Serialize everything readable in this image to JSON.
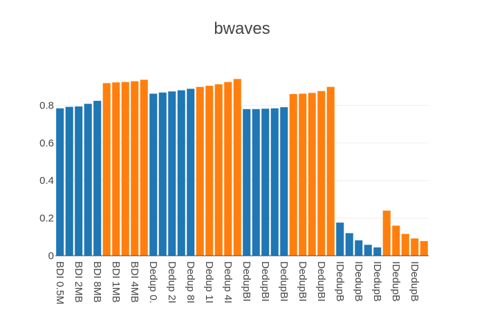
{
  "chart_data": {
    "type": "bar",
    "title": "bwaves",
    "xlabel": "",
    "ylabel": "",
    "ylim": [
      0,
      1.0
    ],
    "yticks": [
      0,
      0.2,
      0.4,
      0.6,
      0.8
    ],
    "ytick_labels": [
      "0",
      "0.2",
      "0.4",
      "0.6",
      "0.8"
    ],
    "grid": true,
    "legend": "none",
    "colors": {
      "blue": "#1f77b4",
      "orange": "#ff7f0e"
    },
    "categories": [
      "BDI 0.5M",
      "BDI 1MB",
      "BDI 2MB",
      "BDI 4MB",
      "BDI 8MB",
      "BDI 0.5M",
      "BDI 1MB",
      "BDI 2MB",
      "BDI 4MB",
      "BDI 8MB",
      "Dedup 0.",
      "Dedup 1I",
      "Dedup 2I",
      "Dedup 4I",
      "Dedup 8I",
      "Dedup 0.",
      "Dedup 1I",
      "Dedup 2I",
      "Dedup 4I",
      "Dedup 8I",
      "DedupBI",
      "DedupBI",
      "DedupBI",
      "DedupBI",
      "DedupBI",
      "DedupBI",
      "DedupBI",
      "DedupBI",
      "DedupBI",
      "DedupBI",
      "IDedupB",
      "IDedupB",
      "IDedupB",
      "IDedupB",
      "IDedupB",
      "IDedupB",
      "IDedupB",
      "IDedupB",
      "IDedupB",
      "IDedupB"
    ],
    "tick_labels": [
      "BDI 0.5M",
      "",
      "BDI 2MB",
      "",
      "BDI 8MB",
      "",
      "BDI 1MB",
      "",
      "BDI 4MB",
      "",
      "Dedup 0.",
      "",
      "Dedup 2I",
      "",
      "Dedup 8I",
      "",
      "Dedup 1I",
      "",
      "Dedup 4I",
      "",
      "DedupBI",
      "",
      "DedupBI",
      "",
      "DedupBI",
      "",
      "DedupBI",
      "",
      "DedupBI",
      "",
      "IDedupB",
      "",
      "IDedupB",
      "",
      "IDedupB",
      "",
      "IDedupB",
      "",
      "IDedupB",
      ""
    ],
    "bar_colors": [
      "blue",
      "blue",
      "blue",
      "blue",
      "blue",
      "orange",
      "orange",
      "orange",
      "orange",
      "orange",
      "blue",
      "blue",
      "blue",
      "blue",
      "blue",
      "orange",
      "orange",
      "orange",
      "orange",
      "orange",
      "blue",
      "blue",
      "blue",
      "blue",
      "blue",
      "orange",
      "orange",
      "orange",
      "orange",
      "orange",
      "blue",
      "blue",
      "blue",
      "blue",
      "blue",
      "orange",
      "orange",
      "orange",
      "orange",
      "orange"
    ],
    "values": [
      0.784,
      0.792,
      0.794,
      0.808,
      0.824,
      0.918,
      0.922,
      0.924,
      0.928,
      0.936,
      0.862,
      0.868,
      0.874,
      0.88,
      0.888,
      0.898,
      0.904,
      0.912,
      0.924,
      0.94,
      0.78,
      0.78,
      0.782,
      0.784,
      0.79,
      0.86,
      0.862,
      0.866,
      0.876,
      0.898,
      0.176,
      0.12,
      0.082,
      0.058,
      0.044,
      0.24,
      0.16,
      0.116,
      0.092,
      0.078
    ]
  }
}
